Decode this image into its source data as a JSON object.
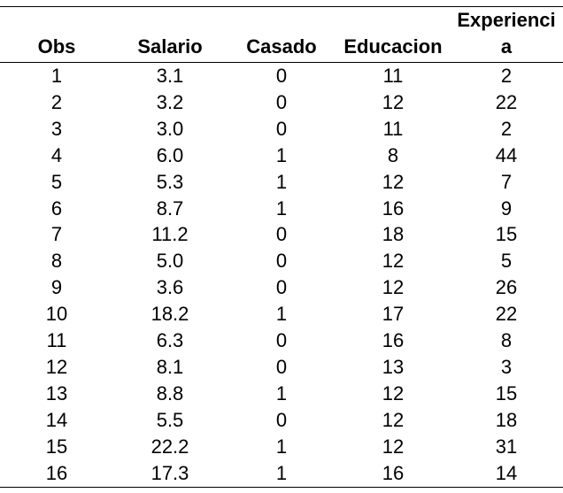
{
  "table": {
    "headers": [
      "Obs",
      "Salario",
      "Casado",
      "Educacion",
      "Experiencia"
    ],
    "rows": [
      [
        "1",
        "3.1",
        "0",
        "11",
        "2"
      ],
      [
        "2",
        "3.2",
        "0",
        "12",
        "22"
      ],
      [
        "3",
        "3.0",
        "0",
        "11",
        "2"
      ],
      [
        "4",
        "6.0",
        "1",
        "8",
        "44"
      ],
      [
        "5",
        "5.3",
        "1",
        "12",
        "7"
      ],
      [
        "6",
        "8.7",
        "1",
        "16",
        "9"
      ],
      [
        "7",
        "11.2",
        "0",
        "18",
        "15"
      ],
      [
        "8",
        "5.0",
        "0",
        "12",
        "5"
      ],
      [
        "9",
        "3.6",
        "0",
        "12",
        "26"
      ],
      [
        "10",
        "18.2",
        "1",
        "17",
        "22"
      ],
      [
        "11",
        "6.3",
        "0",
        "16",
        "8"
      ],
      [
        "12",
        "8.1",
        "0",
        "13",
        "3"
      ],
      [
        "13",
        "8.8",
        "1",
        "12",
        "15"
      ],
      [
        "14",
        "5.5",
        "0",
        "12",
        "18"
      ],
      [
        "15",
        "22.2",
        "1",
        "12",
        "31"
      ],
      [
        "16",
        "17.3",
        "1",
        "16",
        "14"
      ]
    ]
  }
}
